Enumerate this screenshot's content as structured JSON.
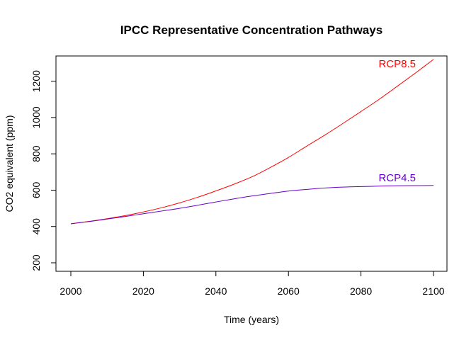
{
  "chart_data": {
    "type": "line",
    "title": "IPCC Representative Concentration Pathways",
    "xlabel": "Time (years)",
    "ylabel": "CO2 equivalent (ppm)",
    "xlim": [
      2000,
      2100
    ],
    "ylim": [
      200,
      1300
    ],
    "xticks": [
      2000,
      2020,
      2040,
      2060,
      2080,
      2100
    ],
    "yticks": [
      200,
      400,
      600,
      800,
      1000,
      1200
    ],
    "grid": false,
    "legend": "none",
    "series": [
      {
        "name": "RCP8.5",
        "color": "#ff0000",
        "x": [
          2000,
          2005,
          2010,
          2015,
          2020,
          2025,
          2030,
          2035,
          2040,
          2045,
          2050,
          2055,
          2060,
          2065,
          2070,
          2075,
          2080,
          2085,
          2090,
          2095,
          2100
        ],
        "y": [
          415,
          428,
          443,
          460,
          480,
          503,
          530,
          561,
          596,
          633,
          674,
          725,
          780,
          842,
          903,
          967,
          1033,
          1100,
          1172,
          1245,
          1320
        ]
      },
      {
        "name": "RCP4.5",
        "color": "#6600cc",
        "x": [
          2000,
          2005,
          2010,
          2015,
          2020,
          2025,
          2030,
          2035,
          2040,
          2045,
          2050,
          2055,
          2060,
          2065,
          2070,
          2075,
          2080,
          2085,
          2090,
          2095,
          2100
        ],
        "y": [
          415,
          427,
          441,
          455,
          470,
          485,
          500,
          517,
          535,
          552,
          568,
          582,
          595,
          604,
          612,
          617,
          620,
          622,
          624,
          625,
          626
        ]
      }
    ]
  }
}
